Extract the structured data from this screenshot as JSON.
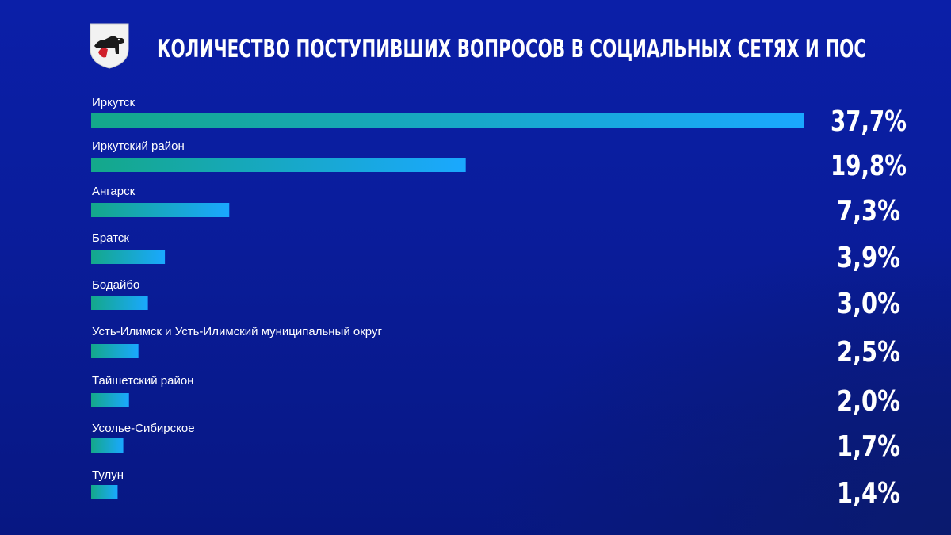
{
  "header": {
    "title": "КОЛИЧЕСТВО ПОСТУПИВШИХ ВОПРОСОВ В СОЦИАЛЬНЫХ СЕТЯХ И ПОС",
    "emblem_icon": "irkutsk-coat-of-arms-icon"
  },
  "colors": {
    "bar_start": "#14a88a",
    "bar_end": "#1aa8ff",
    "text": "#ffffff",
    "background": "#0b1fa8"
  },
  "chart_data": {
    "type": "bar",
    "orientation": "horizontal",
    "title": "КОЛИЧЕСТВО ПОСТУПИВШИХ ВОПРОСОВ В СОЦИАЛЬНЫХ СЕТЯХ И ПОС",
    "categories": [
      "Иркутск",
      "Иркутский район",
      "Ангарск",
      "Братск",
      "Бодайбо",
      "Усть-Илимск и Усть-Илимский муниципальный округ",
      "Тайшетский район",
      "Усолье-Сибирское",
      "Тулун"
    ],
    "values": [
      37.7,
      19.8,
      7.3,
      3.9,
      3.0,
      2.5,
      2.0,
      1.7,
      1.4
    ],
    "value_labels": [
      "37,7%",
      "19,8%",
      "7,3%",
      "3,9%",
      "3,0%",
      "2,5%",
      "2,0%",
      "1,7%",
      "1,4%"
    ],
    "unit": "%",
    "grid": false,
    "legend": "none"
  }
}
